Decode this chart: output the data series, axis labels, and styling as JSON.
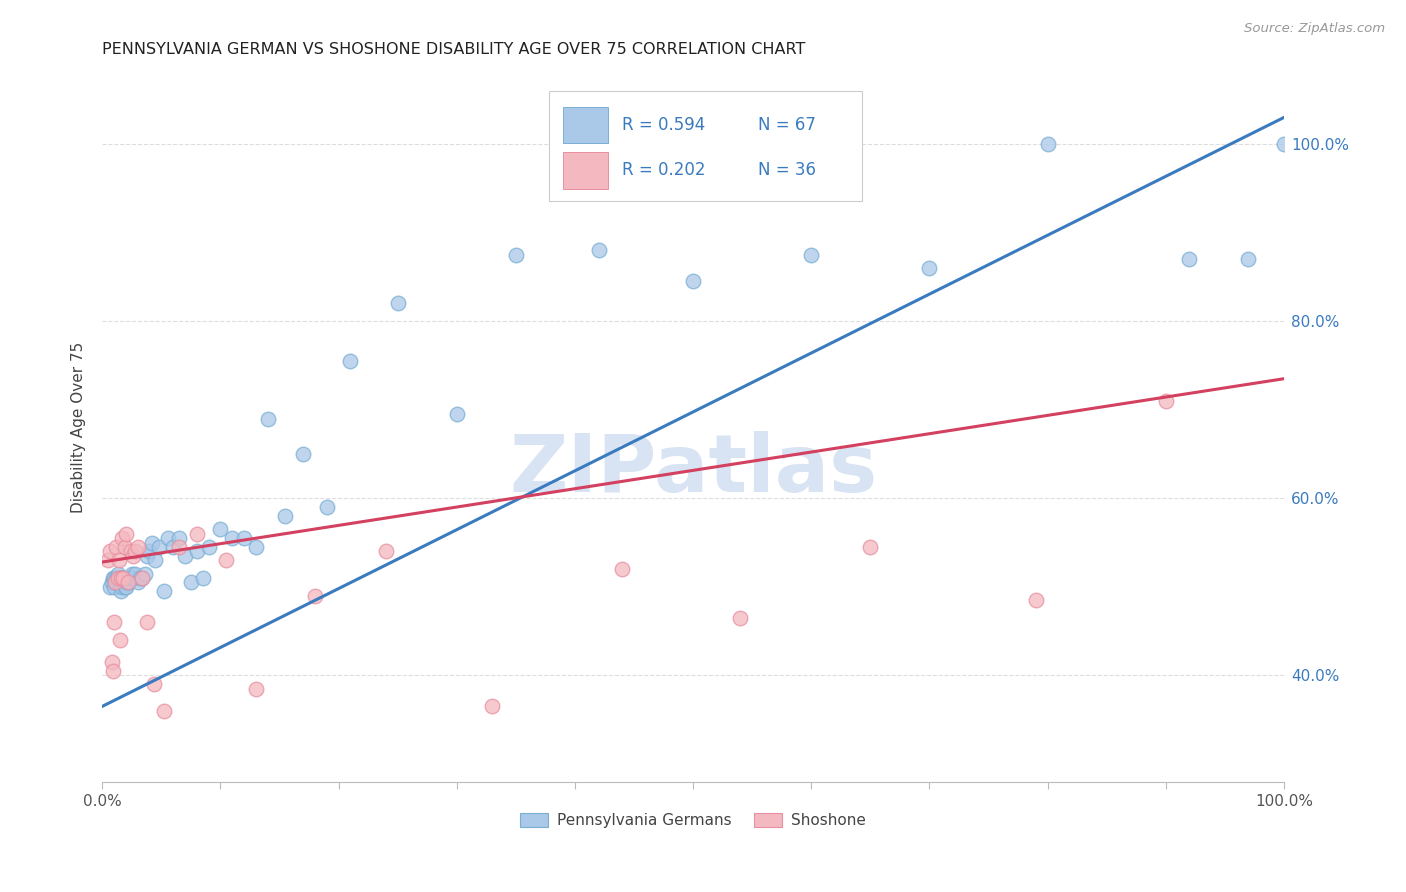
{
  "title": "PENNSYLVANIA GERMAN VS SHOSHONE DISABILITY AGE OVER 75 CORRELATION CHART",
  "source": "Source: ZipAtlas.com",
  "ylabel": "Disability Age Over 75",
  "xlim": [
    0.0,
    1.0
  ],
  "ylim": [
    0.28,
    1.08
  ],
  "xticks": [
    0.0,
    0.1,
    0.2,
    0.3,
    0.4,
    0.5,
    0.6,
    0.7,
    0.8,
    0.9,
    1.0
  ],
  "xticklabels": [
    "0.0%",
    "",
    "",
    "",
    "",
    "",
    "",
    "",
    "",
    "",
    "100.0%"
  ],
  "yticks": [
    0.4,
    0.6,
    0.8,
    1.0
  ],
  "yticklabels": [
    "40.0%",
    "60.0%",
    "80.0%",
    "100.0%"
  ],
  "legend_blue_r": "R = 0.594",
  "legend_blue_n": "N = 67",
  "legend_pink_r": "R = 0.202",
  "legend_pink_n": "N = 36",
  "legend_label_blue": "Pennsylvania Germans",
  "legend_label_pink": "Shoshone",
  "blue_color": "#aac8e8",
  "pink_color": "#f4b8c0",
  "blue_edge_color": "#7aafd4",
  "pink_edge_color": "#e890a0",
  "blue_line_color": "#3a7bbf",
  "pink_line_color": "#d44060",
  "r_n_blue_color": "#3a7bbf",
  "r_n_pink_color": "#d44060",
  "watermark_color": "#c8d8ee",
  "grid_color": "#dddddd",
  "blue_line_x": [
    0.0,
    1.0
  ],
  "blue_line_y": [
    0.365,
    1.03
  ],
  "pink_line_x": [
    0.0,
    1.0
  ],
  "pink_line_y": [
    0.528,
    0.735
  ],
  "blue_scatter_x": [
    0.007,
    0.008,
    0.009,
    0.01,
    0.01,
    0.011,
    0.012,
    0.013,
    0.013,
    0.014,
    0.014,
    0.015,
    0.015,
    0.016,
    0.016,
    0.017,
    0.017,
    0.018,
    0.018,
    0.019,
    0.019,
    0.02,
    0.021,
    0.022,
    0.023,
    0.024,
    0.025,
    0.026,
    0.028,
    0.03,
    0.032,
    0.034,
    0.036,
    0.038,
    0.04,
    0.042,
    0.045,
    0.048,
    0.052,
    0.056,
    0.06,
    0.065,
    0.07,
    0.075,
    0.08,
    0.085,
    0.09,
    0.1,
    0.11,
    0.12,
    0.13,
    0.14,
    0.155,
    0.17,
    0.19,
    0.21,
    0.25,
    0.3,
    0.35,
    0.42,
    0.5,
    0.6,
    0.7,
    0.8,
    0.92,
    0.97,
    1.0
  ],
  "blue_scatter_y": [
    0.5,
    0.505,
    0.51,
    0.5,
    0.51,
    0.505,
    0.51,
    0.505,
    0.515,
    0.505,
    0.51,
    0.505,
    0.51,
    0.495,
    0.51,
    0.5,
    0.51,
    0.505,
    0.51,
    0.5,
    0.505,
    0.5,
    0.505,
    0.51,
    0.505,
    0.51,
    0.515,
    0.51,
    0.515,
    0.505,
    0.51,
    0.51,
    0.515,
    0.535,
    0.54,
    0.55,
    0.53,
    0.545,
    0.495,
    0.555,
    0.545,
    0.555,
    0.535,
    0.505,
    0.54,
    0.51,
    0.545,
    0.565,
    0.555,
    0.555,
    0.545,
    0.69,
    0.58,
    0.65,
    0.59,
    0.755,
    0.82,
    0.695,
    0.875,
    0.88,
    0.845,
    0.875,
    0.86,
    1.0,
    0.87,
    0.87,
    1.0
  ],
  "pink_scatter_x": [
    0.005,
    0.007,
    0.008,
    0.009,
    0.01,
    0.011,
    0.012,
    0.013,
    0.014,
    0.015,
    0.016,
    0.017,
    0.018,
    0.019,
    0.02,
    0.022,
    0.024,
    0.026,
    0.028,
    0.03,
    0.034,
    0.038,
    0.044,
    0.052,
    0.065,
    0.08,
    0.105,
    0.13,
    0.18,
    0.24,
    0.33,
    0.44,
    0.54,
    0.65,
    0.79,
    0.9
  ],
  "pink_scatter_y": [
    0.53,
    0.54,
    0.415,
    0.405,
    0.46,
    0.505,
    0.545,
    0.51,
    0.53,
    0.44,
    0.51,
    0.555,
    0.51,
    0.545,
    0.56,
    0.505,
    0.54,
    0.535,
    0.54,
    0.545,
    0.51,
    0.46,
    0.39,
    0.36,
    0.545,
    0.56,
    0.53,
    0.385,
    0.49,
    0.54,
    0.365,
    0.52,
    0.465,
    0.545,
    0.485,
    0.71
  ]
}
